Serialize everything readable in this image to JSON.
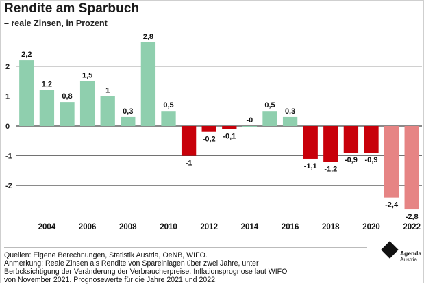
{
  "title": "Rendite am Sparbuch",
  "subtitle": "– reale Zinsen, in Prozent",
  "colors": {
    "positive": "#8fcfae",
    "negative": "#c8000a",
    "forecast": "#e68484",
    "grid": "#444444"
  },
  "chart_data": {
    "type": "bar",
    "title": "Rendite am Sparbuch",
    "subtitle": "– reale Zinsen, in Prozent",
    "categories": [
      "2003",
      "2004",
      "2005",
      "2006",
      "2007",
      "2008",
      "2009",
      "2010",
      "2011",
      "2012",
      "2013",
      "2014",
      "2015",
      "2016",
      "2017",
      "2018",
      "2019",
      "2020",
      "2021",
      "2022"
    ],
    "values": [
      2.2,
      1.2,
      0.8,
      1.5,
      1,
      0.3,
      2.8,
      0.5,
      -1,
      -0.2,
      -0.1,
      -0.0,
      0.5,
      0.3,
      -1.1,
      -1.2,
      -0.9,
      -0.9,
      -2.4,
      -2.8
    ],
    "data_labels": [
      "2,2",
      "1,2",
      "0,8",
      "1,5",
      "1",
      "0,3",
      "2,8",
      "0,5",
      "-1",
      "-0,2",
      "-0,1",
      "-0",
      "0,5",
      "0,3",
      "-1,1",
      "-1,2",
      "-0,9",
      "-0,9",
      "-2,4",
      "-2,8"
    ],
    "forecast": [
      false,
      false,
      false,
      false,
      false,
      false,
      false,
      false,
      false,
      false,
      false,
      false,
      false,
      false,
      false,
      false,
      false,
      false,
      true,
      true
    ],
    "x_tick_labels": [
      "2004",
      "2006",
      "2008",
      "2010",
      "2012",
      "2014",
      "2016",
      "2018",
      "2020",
      "2022"
    ],
    "y_ticks": [
      -2,
      -1,
      0,
      1,
      2
    ],
    "y_tick_labels": [
      "-2",
      "-1",
      "0",
      "1",
      "2"
    ],
    "ylim": [
      -3,
      3.2
    ],
    "grid": true,
    "xlabel": "",
    "ylabel": ""
  },
  "footer": {
    "sources": "Quellen: Eigene Berechnungen, Statistik Austria, OeNB, WIFO.",
    "note_1": "Anmerkung: Reale Zinsen als Rendite von Spareinlagen über zwei Jahre, unter",
    "note_2": "Berücksichtigung der Veränderung der Verbraucherpreise. Inflationsprognose laut WIFO",
    "note_3": "von November 2021. Prognosewerte für die Jahre 2021 und 2022."
  },
  "logo": {
    "name": "Agenda",
    "sub": "Austria"
  }
}
